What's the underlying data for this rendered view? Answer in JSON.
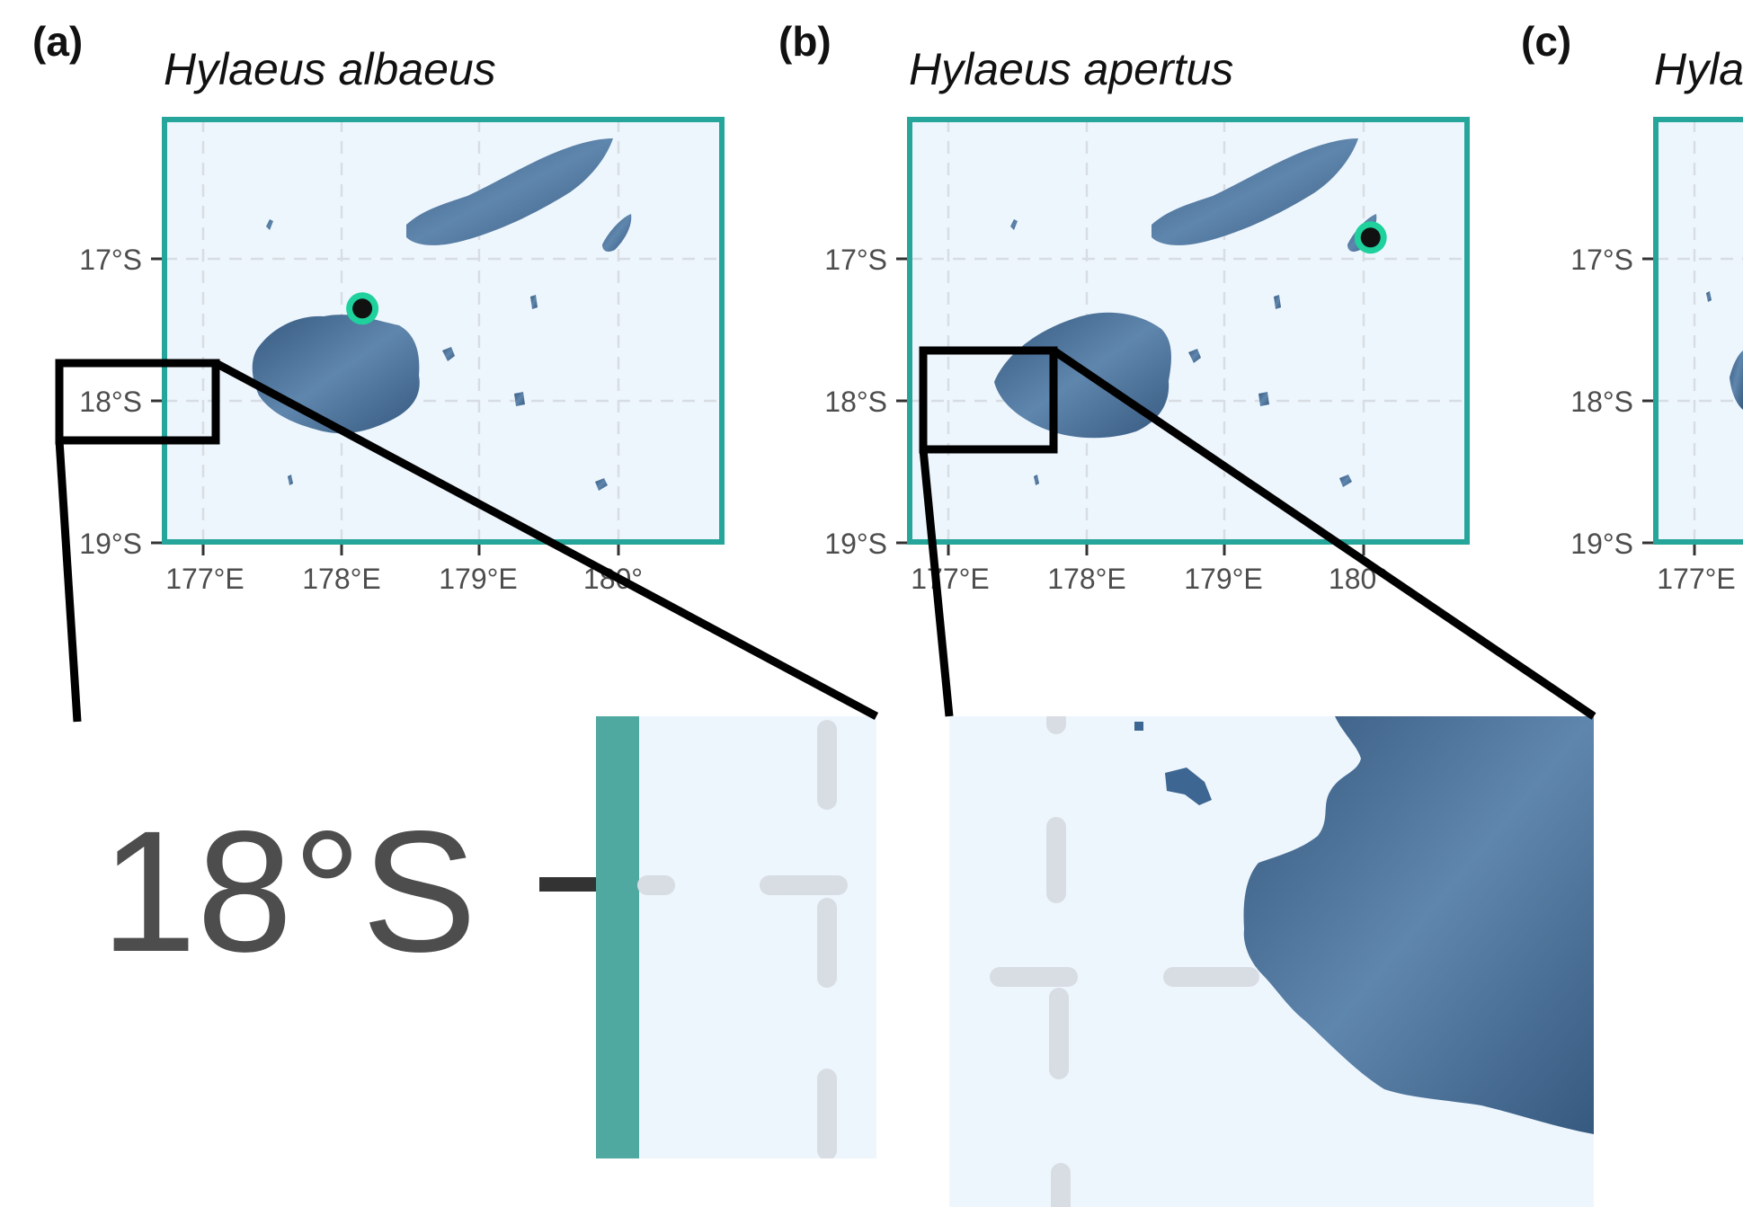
{
  "panels": [
    {
      "label": "(a)",
      "species": "Hylaeus albaeus",
      "record_lon": 178.15,
      "record_lat": -17.35
    },
    {
      "label": "(b)",
      "species": "Hylaeus apertus",
      "record_lon": 180.05,
      "record_lat": -16.85
    },
    {
      "label": "(c)",
      "species": "Hyla"
    }
  ],
  "axes": {
    "lat_ticks": [
      "17°S",
      "18°S",
      "19°S"
    ],
    "lon_ticks": [
      "177°E",
      "178°E",
      "179°E",
      "180°"
    ],
    "panel_c_lon_ticks": [
      "177°E"
    ],
    "lat_range": [
      -19.0,
      -16.0
    ],
    "lon_range": [
      176.7,
      180.8
    ]
  },
  "zoom": {
    "label": "18°S"
  },
  "colors": {
    "frame": "#26a69a",
    "zoom_frame": "#4fa9a0",
    "ocean": "#eef6fd",
    "land": "#3e6692",
    "land_light": "#7ea3c4",
    "gridline": "#d8dde3",
    "record_fill": "#111111",
    "record_ring": "#1fd19c",
    "callout": "#000000"
  }
}
